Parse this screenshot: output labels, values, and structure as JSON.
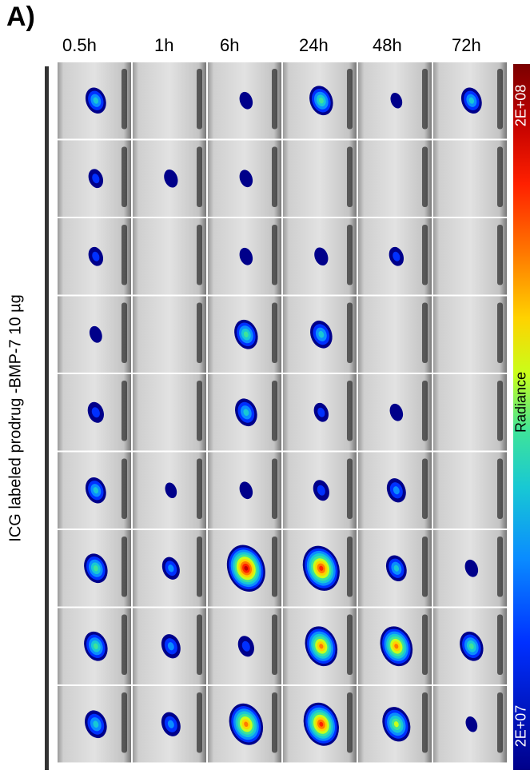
{
  "panel_label": "A)",
  "time_points": [
    "0.5h",
    "1h",
    "6h",
    "24h",
    "48h",
    "72h"
  ],
  "side_label": "ICG labeled prodrug -BMP-7  10 µg",
  "colorbar": {
    "title": "Radiance",
    "max_label": "2E+08",
    "min_label": "2E+07",
    "colormap": [
      "#00008a",
      "#0030ff",
      "#0a8cff",
      "#18c8d4",
      "#3ee39a",
      "#c8ff1a",
      "#ffd200",
      "#ff7a00",
      "#ff2000",
      "#c00000",
      "#7a0000"
    ]
  },
  "grid": {
    "rows": 9,
    "cols": 6,
    "signal_levels": [
      [
        0.35,
        0.0,
        0.1,
        0.45,
        0.05,
        0.35
      ],
      [
        0.15,
        0.12,
        0.1,
        0.0,
        0.0,
        0.0
      ],
      [
        0.15,
        0.0,
        0.1,
        0.12,
        0.15,
        0.0
      ],
      [
        0.08,
        0.0,
        0.45,
        0.4,
        0.0,
        0.0
      ],
      [
        0.2,
        0.0,
        0.4,
        0.15,
        0.1,
        0.0
      ],
      [
        0.35,
        0.05,
        0.1,
        0.2,
        0.3,
        0.0
      ],
      [
        0.45,
        0.25,
        0.95,
        0.9,
        0.35,
        0.1
      ],
      [
        0.45,
        0.3,
        0.2,
        0.75,
        0.75,
        0.45
      ],
      [
        0.4,
        0.3,
        0.8,
        0.85,
        0.6,
        0.05
      ]
    ]
  }
}
